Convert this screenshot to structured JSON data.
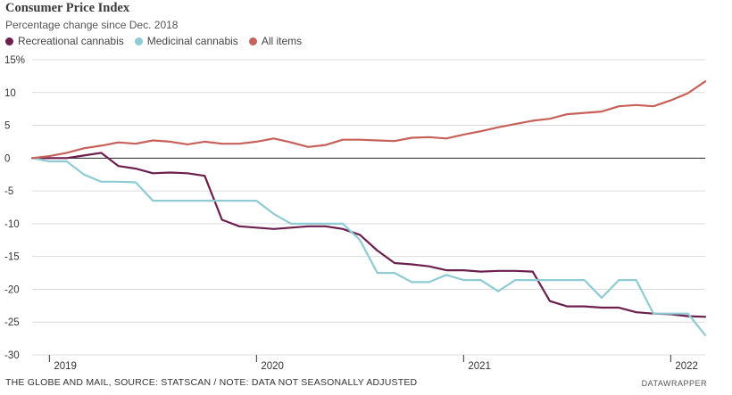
{
  "chart_data": {
    "type": "line",
    "title": "Consumer Price Index",
    "subtitle": "Percentage change since Dec. 2018",
    "ylim": [
      -30,
      15
    ],
    "yticks": [
      15,
      10,
      5,
      0,
      -5,
      -10,
      -15,
      -20,
      -25,
      -30
    ],
    "ytick_labels": [
      "15%",
      "10",
      "5",
      "0",
      "-5",
      "-10",
      "-15",
      "-20",
      "-25",
      "-30"
    ],
    "xlim": [
      0,
      39
    ],
    "x_ticks": [
      {
        "x": 1,
        "label": "2019"
      },
      {
        "x": 13,
        "label": "2020"
      },
      {
        "x": 25,
        "label": "2021"
      },
      {
        "x": 37,
        "label": "2022"
      }
    ],
    "x_note": "x = months since Dec. 2018",
    "grid": true,
    "legend_position": "top-left",
    "series": [
      {
        "name": "Recreational cannabis",
        "color": "#6b1f4f",
        "x": [
          0,
          1,
          2,
          3,
          4,
          5,
          6,
          7,
          8,
          9,
          10,
          11,
          12,
          13,
          14,
          15,
          16,
          17,
          18,
          19,
          20,
          21,
          22,
          23,
          24,
          25,
          26,
          27,
          28,
          29,
          30,
          31,
          32,
          33,
          34,
          35,
          36,
          37,
          38,
          39
        ],
        "values": [
          0,
          0,
          0,
          0.4,
          0.8,
          -1.2,
          -1.6,
          -2.3,
          -2.2,
          -2.3,
          -2.7,
          -9.4,
          -10.4,
          -10.6,
          -10.8,
          -10.6,
          -10.4,
          -10.4,
          -10.8,
          -11.7,
          -14.1,
          -16,
          -16.2,
          -16.5,
          -17.1,
          -17.1,
          -17.3,
          -17.2,
          -17.2,
          -17.3,
          -21.8,
          -22.6,
          -22.6,
          -22.8,
          -22.8,
          -23.5,
          -23.7,
          -23.8,
          -24.1,
          -24.2
        ]
      },
      {
        "name": "Medicinal cannabis",
        "color": "#8fcbd2",
        "x": [
          0,
          1,
          2,
          3,
          4,
          5,
          6,
          7,
          8,
          9,
          10,
          11,
          12,
          13,
          14,
          15,
          16,
          17,
          18,
          19,
          20,
          21,
          22,
          23,
          24,
          25,
          26,
          27,
          28,
          29,
          30,
          31,
          32,
          33,
          34,
          35,
          36,
          37,
          38,
          39
        ],
        "values": [
          0,
          -0.5,
          -0.5,
          -2.5,
          -3.6,
          -3.6,
          -3.7,
          -6.5,
          -6.5,
          -6.5,
          -6.5,
          -6.5,
          -6.5,
          -6.5,
          -8.5,
          -10,
          -10,
          -10,
          -10,
          -12.5,
          -17.5,
          -17.5,
          -18.9,
          -18.9,
          -17.8,
          -18.6,
          -18.6,
          -20.3,
          -18.6,
          -18.6,
          -18.6,
          -18.6,
          -18.6,
          -21.3,
          -18.6,
          -18.6,
          -23.7,
          -23.7,
          -23.7,
          -27
        ]
      },
      {
        "name": "All items",
        "color": "#c8605a",
        "x": [
          0,
          1,
          2,
          3,
          4,
          5,
          6,
          7,
          8,
          9,
          10,
          11,
          12,
          13,
          14,
          15,
          16,
          17,
          18,
          19,
          20,
          21,
          22,
          23,
          24,
          25,
          26,
          27,
          28,
          29,
          30,
          31,
          32,
          33,
          34,
          35,
          36,
          37,
          38,
          39
        ],
        "values": [
          0,
          0.3,
          0.8,
          1.5,
          1.9,
          2.4,
          2.2,
          2.7,
          2.5,
          2.1,
          2.5,
          2.2,
          2.2,
          2.5,
          3,
          2.4,
          1.7,
          2,
          2.8,
          2.8,
          2.7,
          2.6,
          3.1,
          3.2,
          3,
          3.6,
          4.1,
          4.7,
          5.2,
          5.7,
          6,
          6.7,
          6.9,
          7.1,
          7.9,
          8.1,
          7.9,
          8.8,
          9.9,
          11.7
        ]
      }
    ]
  },
  "footer": {
    "source": "THE GLOBE AND MAIL, SOURCE: STATSCAN / NOTE: DATA NOT SEASONALLY ADJUSTED",
    "credit": "DATAWRAPPER"
  }
}
